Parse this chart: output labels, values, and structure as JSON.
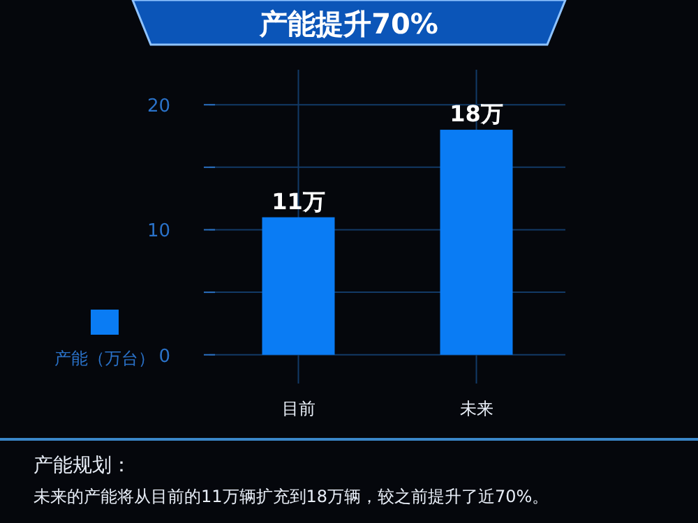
{
  "chart_data": {
    "type": "bar",
    "title": "产能提升70%",
    "categories": [
      "目前",
      "未来"
    ],
    "series": [
      {
        "name": "产能（万台）",
        "color": "#0a7cf4",
        "values": [
          11,
          18
        ]
      }
    ],
    "value_labels": [
      "11万",
      "18万"
    ],
    "ylim": [
      -2.3,
      22.8
    ],
    "yticks": [
      0,
      {
        "value": 5,
        "label": null
      },
      10,
      {
        "value": 15,
        "label": null
      },
      20
    ],
    "grid": true,
    "legend": "left",
    "annotations": [
      "产能规划：",
      "未来的产能将从目前的11万辆扩充到18万辆，较之前提升了近70%。"
    ]
  }
}
